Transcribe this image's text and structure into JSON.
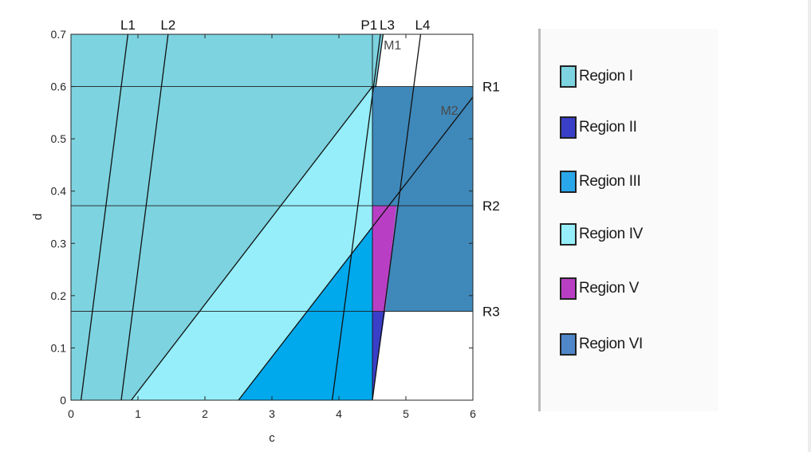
{
  "chart_data": {
    "type": "area",
    "title": "",
    "xlabel": "c",
    "ylabel": "d",
    "xlim": [
      0,
      6
    ],
    "ylim": [
      0,
      0.7
    ],
    "xticks": [
      "0",
      "1",
      "2",
      "3",
      "4",
      "5",
      "6"
    ],
    "yticks": [
      "0",
      "0.1",
      "0.2",
      "0.3",
      "0.4",
      "0.5",
      "0.6",
      "0.7"
    ],
    "regions": [
      {
        "name": "Region I",
        "color": "#7dd3e0",
        "polygon": [
          [
            0,
            0
          ],
          [
            0.9,
            0
          ],
          [
            4.5,
            0.6
          ],
          [
            4.5,
            0.7
          ],
          [
            0,
            0.7
          ]
        ]
      },
      {
        "name": "Region I",
        "color": "#7dd3e0",
        "polygon": [
          [
            4.5,
            0.6
          ],
          [
            4.55,
            0.6
          ],
          [
            4.66,
            0.7
          ],
          [
            4.5,
            0.7
          ]
        ]
      },
      {
        "name": "Region IV",
        "color": "#95eef9",
        "polygon": [
          [
            0.9,
            0
          ],
          [
            2.5,
            0
          ],
          [
            4.5,
            0.333
          ],
          [
            4.5,
            0.6
          ]
        ]
      },
      {
        "name": "Region III",
        "color": "#00a8ec",
        "polygon": [
          [
            2.5,
            0
          ],
          [
            4.5,
            0
          ],
          [
            4.5,
            0.333
          ]
        ]
      },
      {
        "name": "Region VI",
        "color": "#3f88ba",
        "polygon": [
          [
            4.5,
            0.6
          ],
          [
            6,
            0.6
          ],
          [
            6,
            0.17
          ],
          [
            4.69,
            0.17
          ],
          [
            4.86,
            0.372
          ],
          [
            4.5,
            0.372
          ]
        ]
      },
      {
        "name": "Region V",
        "color": "#b83fc4",
        "polygon": [
          [
            4.5,
            0.372
          ],
          [
            4.86,
            0.372
          ],
          [
            4.69,
            0.17
          ],
          [
            4.5,
            0.17
          ]
        ]
      },
      {
        "name": "Region II",
        "color": "#3a3fc8",
        "polygon": [
          [
            4.5,
            0.17
          ],
          [
            4.69,
            0.17
          ],
          [
            4.5,
            0
          ]
        ]
      }
    ],
    "hlines": [
      {
        "label": "R1",
        "y": 0.6
      },
      {
        "label": "R2",
        "y": 0.372
      },
      {
        "label": "R3",
        "y": 0.17
      }
    ],
    "lines": [
      {
        "label": "L1",
        "points": [
          [
            0.15,
            0
          ],
          [
            0.85,
            0.7
          ]
        ]
      },
      {
        "label": "L2",
        "points": [
          [
            0.75,
            0
          ],
          [
            1.45,
            0.7
          ]
        ]
      },
      {
        "label": "L3",
        "points": [
          [
            3.9,
            0
          ],
          [
            4.62,
            0.7
          ]
        ]
      },
      {
        "label": "L4",
        "points": [
          [
            4.5,
            0
          ],
          [
            5.22,
            0.7
          ]
        ]
      },
      {
        "label": "M1",
        "points": [
          [
            0.9,
            0
          ],
          [
            4.5,
            0.6
          ],
          [
            4.55,
            0.6
          ],
          [
            4.66,
            0.7
          ]
        ]
      },
      {
        "label": "M2",
        "points": [
          [
            2.5,
            0
          ],
          [
            6,
            0.58
          ]
        ]
      },
      {
        "label": "P1",
        "points": [
          [
            4.5,
            0
          ],
          [
            4.5,
            0.7
          ]
        ]
      }
    ],
    "annotations": [
      {
        "text": "L1",
        "x": 0.85,
        "y": 0.7
      },
      {
        "text": "L2",
        "x": 1.45,
        "y": 0.7
      },
      {
        "text": "P1",
        "x": 4.45,
        "y": 0.7
      },
      {
        "text": "L3",
        "x": 4.72,
        "y": 0.7
      },
      {
        "text": "L4",
        "x": 5.25,
        "y": 0.7
      },
      {
        "text": "M1",
        "x": 4.8,
        "y": 0.68
      },
      {
        "text": "M2",
        "x": 5.65,
        "y": 0.555
      },
      {
        "text": "R1",
        "x": 6,
        "y": 0.6
      },
      {
        "text": "R2",
        "x": 6,
        "y": 0.372
      },
      {
        "text": "R3",
        "x": 6,
        "y": 0.17
      }
    ],
    "legend": {
      "placement": "right",
      "entries": [
        {
          "label": "Region I",
          "color": "#7dd3e0"
        },
        {
          "label": "Region II",
          "color": "#3a3fc8"
        },
        {
          "label": "Region III",
          "color": "#2aa7ea"
        },
        {
          "label": "Region IV",
          "color": "#95eef9"
        },
        {
          "label": "Region V",
          "color": "#b83fc4"
        },
        {
          "label": "Region VI",
          "color": "#4f87c9"
        }
      ]
    }
  }
}
